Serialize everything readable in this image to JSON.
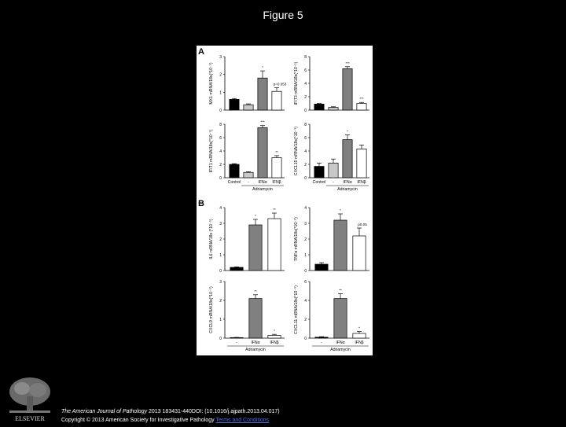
{
  "slide": {
    "title": "Figure 5"
  },
  "citation": {
    "journal": "The American Journal of Pathology",
    "details": " 2013 183431-440DOI: (10.1016/j.ajpath.2013.04.017)",
    "copyright": "Copyright © 2013 American Society for Investigative Pathology ",
    "link_text": "Terms and Conditions"
  },
  "publisher": {
    "logo_text": "ELSEVIER"
  },
  "colors": {
    "black": "#000000",
    "light_gray": "#c8c8c8",
    "dark_gray": "#808080",
    "white": "#ffffff"
  },
  "figure": {
    "panel_a_label": "A",
    "panel_b_label": "B",
    "a_xaxis": {
      "categories": [
        "Control",
        "-",
        "IFNα",
        "IFNβ"
      ],
      "group_label": "Adriamycin"
    },
    "b_xaxis": {
      "categories": [
        "-",
        "IFNα",
        "IFNβ"
      ],
      "group_label": "Adriamycin"
    }
  },
  "chart_data": [
    {
      "type": "bar",
      "panel": "A",
      "ylabel": "MX1 mRNA/18s(*10⁻⁵)",
      "categories": [
        "Control",
        "-",
        "IFNα",
        "IFNβ"
      ],
      "values": [
        0.6,
        0.3,
        1.8,
        1.05
      ],
      "errors": [
        0.05,
        0.05,
        0.4,
        0.2
      ],
      "bar_colors": [
        "#000000",
        "#c8c8c8",
        "#808080",
        "#ffffff"
      ],
      "ylim": [
        0,
        3
      ],
      "ticks": [
        0,
        1,
        2,
        3
      ],
      "annotations": [
        "",
        "",
        "*",
        "p=0.053"
      ]
    },
    {
      "type": "bar",
      "panel": "A",
      "ylabel": "IFIT3 mRNA/18s(*10⁻⁵)",
      "categories": [
        "Control",
        "-",
        "IFNα",
        "IFNβ"
      ],
      "values": [
        0.9,
        0.4,
        6.2,
        1.0
      ],
      "errors": [
        0.1,
        0.1,
        0.3,
        0.15
      ],
      "bar_colors": [
        "#000000",
        "#c8c8c8",
        "#808080",
        "#ffffff"
      ],
      "ylim": [
        0,
        8
      ],
      "ticks": [
        0,
        2,
        4,
        6,
        8
      ],
      "annotations": [
        "",
        "",
        "***",
        "***"
      ]
    },
    {
      "type": "bar",
      "panel": "A",
      "ylabel": "IFIT1 mRNA/18s(*10⁻⁵)",
      "categories": [
        "Control",
        "-",
        "IFNα",
        "IFNβ"
      ],
      "values": [
        2.0,
        0.8,
        7.5,
        3.0
      ],
      "errors": [
        0.1,
        0.1,
        0.3,
        0.3
      ],
      "bar_colors": [
        "#000000",
        "#c8c8c8",
        "#808080",
        "#ffffff"
      ],
      "ylim": [
        0,
        8
      ],
      "ticks": [
        0,
        2,
        4,
        6,
        8
      ],
      "annotations": [
        "",
        "",
        "***",
        "**"
      ]
    },
    {
      "type": "bar",
      "panel": "A",
      "ylabel": "CXCL10 mRNA/18s(*10⁻⁵)",
      "categories": [
        "Control",
        "-",
        "IFNα",
        "IFNβ"
      ],
      "values": [
        1.7,
        2.2,
        5.7,
        4.3
      ],
      "errors": [
        0.5,
        0.6,
        0.7,
        0.6
      ],
      "bar_colors": [
        "#000000",
        "#c8c8c8",
        "#808080",
        "#ffffff"
      ],
      "ylim": [
        0,
        8
      ],
      "ticks": [
        0,
        2,
        4,
        6,
        8
      ],
      "annotations": [
        "",
        "",
        "*",
        ""
      ]
    },
    {
      "type": "bar",
      "panel": "B",
      "ylabel": "IL6 mRNA/18s (*10⁻⁵)",
      "categories": [
        "-",
        "IFNα",
        "IFNβ"
      ],
      "values": [
        0.2,
        2.9,
        3.3
      ],
      "errors": [
        0.03,
        0.35,
        0.35
      ],
      "bar_colors": [
        "#000000",
        "#808080",
        "#ffffff"
      ],
      "ylim": [
        0,
        4
      ],
      "ticks": [
        0,
        1,
        2,
        3,
        4
      ],
      "annotations": [
        "",
        "*",
        "**"
      ]
    },
    {
      "type": "bar",
      "panel": "B",
      "ylabel": "TNFα mRNA/18s(*10⁻⁵)",
      "categories": [
        "-",
        "IFNα",
        "IFNβ"
      ],
      "values": [
        0.4,
        3.2,
        2.2
      ],
      "errors": [
        0.1,
        0.4,
        0.5
      ],
      "bar_colors": [
        "#000000",
        "#808080",
        "#ffffff"
      ],
      "ylim": [
        0,
        4
      ],
      "ticks": [
        0,
        1,
        2,
        3,
        4
      ],
      "annotations": [
        "",
        "*",
        "p0.05"
      ]
    },
    {
      "type": "bar",
      "panel": "B",
      "ylabel": "CXCL9 mRNA/18s(*10⁻⁵)",
      "categories": [
        "-",
        "IFNα",
        "IFNβ"
      ],
      "values": [
        0.03,
        2.1,
        0.15
      ],
      "errors": [
        0.01,
        0.2,
        0.05
      ],
      "bar_colors": [
        "#000000",
        "#808080",
        "#ffffff"
      ],
      "ylim": [
        0,
        3
      ],
      "ticks": [
        0,
        1,
        2,
        3
      ],
      "annotations": [
        "",
        "**",
        "*"
      ]
    },
    {
      "type": "bar",
      "panel": "B",
      "ylabel": "CXCL11 mRNA/18s(*10⁻⁵)",
      "categories": [
        "-",
        "IFNα",
        "IFNβ"
      ],
      "values": [
        0.1,
        4.2,
        0.5
      ],
      "errors": [
        0.05,
        0.5,
        0.2
      ],
      "bar_colors": [
        "#000000",
        "#808080",
        "#ffffff"
      ],
      "ylim": [
        0,
        6
      ],
      "ticks": [
        0,
        2,
        4,
        6
      ],
      "annotations": [
        "",
        "**",
        "*"
      ]
    }
  ]
}
